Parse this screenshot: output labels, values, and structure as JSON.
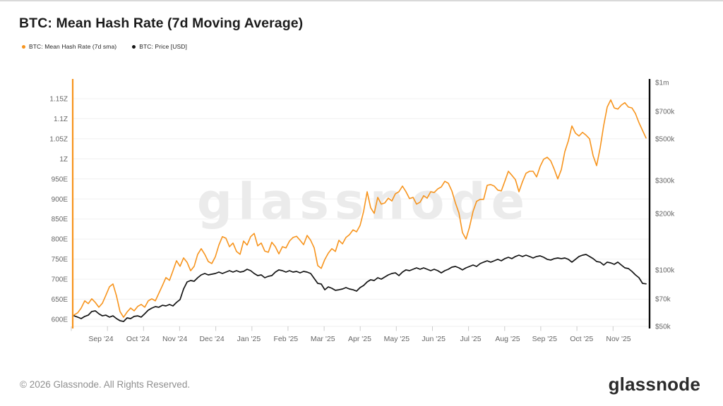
{
  "header": {
    "title": "BTC: Mean Hash Rate (7d Moving Average)"
  },
  "legend": {
    "items": [
      {
        "label": "BTC: Mean Hash Rate (7d sma)",
        "color": "#f7941d"
      },
      {
        "label": "BTC: Price [USD]",
        "color": "#141414"
      }
    ]
  },
  "watermark": {
    "text": "glassnode",
    "color": "#ebebeb"
  },
  "footer": {
    "copyright": "© 2026 Glassnode. All Rights Reserved.",
    "logo_text": "glassnode"
  },
  "chart_data": {
    "type": "line",
    "title": "BTC: Mean Hash Rate (7d Moving Average)",
    "grid": "horizontal-only",
    "legend_position": "top-left",
    "x_axis": {
      "unit": "time",
      "start": "Aug 2024",
      "end": "Nov 2025",
      "month_labels": [
        "Sep '24",
        "Oct '24",
        "Nov '24",
        "Dec '24",
        "Jan '25",
        "Feb '25",
        "Mar '25",
        "Apr '25",
        "May '25",
        "Jun '25",
        "Jul '25",
        "Aug '25",
        "Sep '25",
        "Oct '25",
        "Nov '25"
      ]
    },
    "y_left": {
      "name": "Mean Hash Rate",
      "unit": "EH/s",
      "scale": "linear",
      "min": 600,
      "max": 1150,
      "ticks": [
        {
          "label": "1.15Z",
          "value": 1150
        },
        {
          "label": "1.1Z",
          "value": 1100
        },
        {
          "label": "1.05Z",
          "value": 1050
        },
        {
          "label": "1Z",
          "value": 1000
        },
        {
          "label": "950E",
          "value": 950
        },
        {
          "label": "900E",
          "value": 900
        },
        {
          "label": "850E",
          "value": 850
        },
        {
          "label": "800E",
          "value": 800
        },
        {
          "label": "750E",
          "value": 750
        },
        {
          "label": "700E",
          "value": 700
        },
        {
          "label": "650E",
          "value": 650
        },
        {
          "label": "600E",
          "value": 600
        }
      ]
    },
    "y_right": {
      "name": "BTC Price",
      "unit": "USD",
      "scale": "log",
      "min": 50000,
      "max": 1000000,
      "ticks": [
        {
          "label": "$1m",
          "value": 1000000
        },
        {
          "label": "$700k",
          "value": 700000
        },
        {
          "label": "$500k",
          "value": 500000
        },
        {
          "label": "$300k",
          "value": 300000
        },
        {
          "label": "$200k",
          "value": 200000
        },
        {
          "label": "$100k",
          "value": 100000
        },
        {
          "label": "$70k",
          "value": 70000
        },
        {
          "label": "$50k",
          "value": 50000
        }
      ]
    },
    "series": [
      {
        "name": "BTC: Mean Hash Rate (7d sma)",
        "axis": "left",
        "unit": "EH/s",
        "color": "#f7941d",
        "values": [
          611,
          616,
          628,
          646,
          639,
          651,
          642,
          630,
          640,
          660,
          681,
          688,
          658,
          619,
          605,
          618,
          628,
          621,
          632,
          637,
          630,
          646,
          651,
          646,
          665,
          684,
          704,
          697,
          721,
          746,
          732,
          753,
          742,
          721,
          732,
          762,
          776,
          762,
          744,
          739,
          756,
          785,
          806,
          802,
          781,
          790,
          769,
          762,
          795,
          785,
          806,
          814,
          783,
          790,
          770,
          767,
          792,
          781,
          763,
          781,
          778,
          795,
          804,
          807,
          797,
          786,
          809,
          797,
          778,
          734,
          727,
          749,
          765,
          776,
          769,
          797,
          788,
          804,
          811,
          823,
          818,
          834,
          869,
          918,
          878,
          864,
          904,
          887,
          890,
          902,
          895,
          913,
          918,
          932,
          918,
          901,
          904,
          887,
          892,
          908,
          902,
          918,
          916,
          925,
          930,
          944,
          939,
          920,
          890,
          865,
          816,
          800,
          830,
          869,
          894,
          899,
          899,
          934,
          936,
          932,
          922,
          920,
          944,
          969,
          959,
          948,
          918,
          943,
          964,
          969,
          969,
          955,
          981,
          999,
          1004,
          995,
          974,
          950,
          973,
          1018,
          1045,
          1082,
          1064,
          1057,
          1066,
          1059,
          1050,
          1008,
          983,
          1027,
          1083,
          1129,
          1147,
          1127,
          1124,
          1134,
          1140,
          1129,
          1127,
          1113,
          1090,
          1071,
          1052
        ]
      },
      {
        "name": "BTC: Price [USD]",
        "axis": "right",
        "unit": "kUSD",
        "color": "#141414",
        "values": [
          56.9,
          56.0,
          55.0,
          56.5,
          57.4,
          60.0,
          60.5,
          58.4,
          56.9,
          57.4,
          56.0,
          56.9,
          55.0,
          53.6,
          53.1,
          55.5,
          55.0,
          56.5,
          56.9,
          56.0,
          58.4,
          61.0,
          62.6,
          63.7,
          63.2,
          64.8,
          64.3,
          65.4,
          64.3,
          67.1,
          69.5,
          79.1,
          86.3,
          87.8,
          87.0,
          90.9,
          94.1,
          95.7,
          94.1,
          94.9,
          95.7,
          97.4,
          95.7,
          97.4,
          99.1,
          97.4,
          99.1,
          97.4,
          98.2,
          100.8,
          99.1,
          95.7,
          93.3,
          94.1,
          90.9,
          92.5,
          93.3,
          97.4,
          100.0,
          99.1,
          97.4,
          99.1,
          97.4,
          98.2,
          96.5,
          98.2,
          97.4,
          95.7,
          90.1,
          84.8,
          84.1,
          78.4,
          81.2,
          79.8,
          77.8,
          78.4,
          79.1,
          80.5,
          79.1,
          78.4,
          77.1,
          80.5,
          82.6,
          86.3,
          88.6,
          87.8,
          90.9,
          89.3,
          91.7,
          94.1,
          95.7,
          96.5,
          93.3,
          97.4,
          100.0,
          99.1,
          100.8,
          102.6,
          100.8,
          102.6,
          100.8,
          99.1,
          100.8,
          99.1,
          96.5,
          99.1,
          100.8,
          103.5,
          104.4,
          102.6,
          100.0,
          102.6,
          104.4,
          106.2,
          104.4,
          108.1,
          110.0,
          111.9,
          110.0,
          111.9,
          113.9,
          111.9,
          114.9,
          116.8,
          114.9,
          117.9,
          119.9,
          117.9,
          119.9,
          117.9,
          115.8,
          117.9,
          118.9,
          116.8,
          113.9,
          112.9,
          114.9,
          115.8,
          114.9,
          115.8,
          113.9,
          110.0,
          113.9,
          117.9,
          119.9,
          120.9,
          117.9,
          114.9,
          110.9,
          110.0,
          106.2,
          110.0,
          109.0,
          107.1,
          110.0,
          106.2,
          102.6,
          101.7,
          98.2,
          94.1,
          90.9,
          84.8,
          84.3
        ]
      }
    ]
  }
}
